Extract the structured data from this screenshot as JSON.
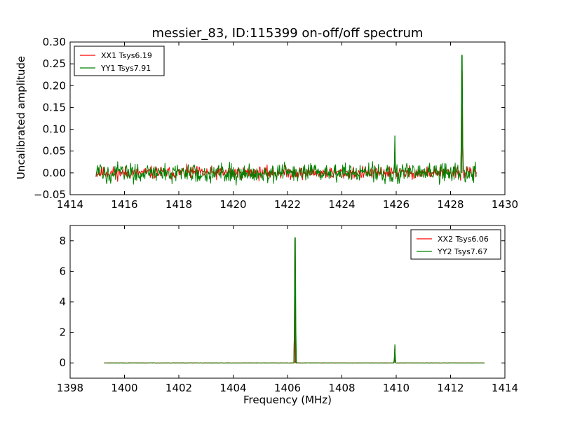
{
  "figure": {
    "title": "messier_83, ID:115399 on-off/off spectrum",
    "xlabel": "Frequency (MHz)",
    "ylabel": "Uncalibrated amplitude"
  },
  "colors": {
    "red": "#ff0000",
    "green": "#008000"
  },
  "chart_data": [
    {
      "type": "line",
      "panel": "top",
      "xlim": [
        1414,
        1430
      ],
      "ylim": [
        -0.05,
        0.3
      ],
      "xticks": [
        1414,
        1416,
        1418,
        1420,
        1422,
        1424,
        1426,
        1428,
        1430
      ],
      "yticks": [
        -0.05,
        0.0,
        0.05,
        0.1,
        0.15,
        0.2,
        0.25,
        0.3
      ],
      "xticklabels": [
        "1414",
        "1416",
        "1418",
        "1420",
        "1422",
        "1424",
        "1426",
        "1428",
        "1430"
      ],
      "yticklabels": [
        "−0.05",
        "0.00",
        "0.05",
        "0.10",
        "0.15",
        "0.20",
        "0.25",
        "0.30"
      ],
      "legend_position": "top-left",
      "grid": false,
      "series": [
        {
          "name": "XX1 Tsys6.19",
          "color": "#ff0000",
          "x_range": [
            1414.95,
            1428.95
          ],
          "noise_amplitude": 0.012,
          "peaks": [
            [
              1425.95,
              0.055
            ],
            [
              1428.42,
              0.235
            ]
          ]
        },
        {
          "name": "YY1 Tsys7.91",
          "color": "#008000",
          "x_range": [
            1414.95,
            1428.95
          ],
          "noise_amplitude": 0.018,
          "peaks": [
            [
              1425.95,
              0.085
            ],
            [
              1428.42,
              0.27
            ]
          ]
        }
      ]
    },
    {
      "type": "line",
      "panel": "bottom",
      "xlim": [
        1398,
        1414
      ],
      "ylim": [
        -1,
        9
      ],
      "xticks": [
        1398,
        1400,
        1402,
        1404,
        1406,
        1408,
        1410,
        1412,
        1414
      ],
      "yticks": [
        0,
        2,
        4,
        6,
        8
      ],
      "xticklabels": [
        "1398",
        "1400",
        "1402",
        "1404",
        "1406",
        "1408",
        "1410",
        "1412",
        "1414"
      ],
      "yticklabels": [
        "0",
        "2",
        "4",
        "6",
        "8"
      ],
      "legend_position": "top-right",
      "grid": false,
      "series": [
        {
          "name": "XX2 Tsys6.06",
          "color": "#ff0000",
          "x_range": [
            1399.25,
            1413.25
          ],
          "noise_amplitude": 0.01,
          "peaks": [
            [
              1406.27,
              8.1
            ],
            [
              1409.95,
              1.1
            ]
          ]
        },
        {
          "name": "YY2 Tsys7.67",
          "color": "#008000",
          "x_range": [
            1399.25,
            1413.25
          ],
          "noise_amplitude": 0.01,
          "peaks": [
            [
              1406.28,
              8.2
            ],
            [
              1409.95,
              1.2
            ]
          ]
        }
      ]
    }
  ]
}
